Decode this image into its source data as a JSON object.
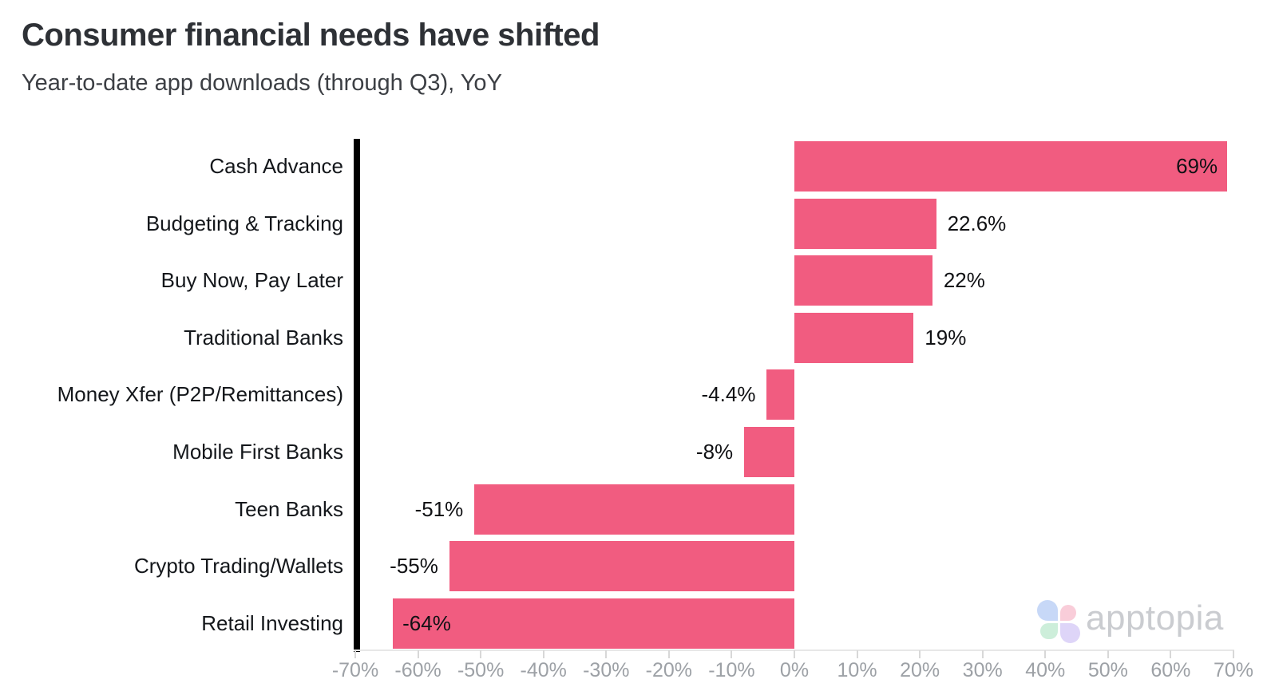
{
  "header": {
    "title": "Consumer financial needs have shifted",
    "subtitle": "Year-to-date app downloads (through Q3), YoY"
  },
  "chart_data": {
    "type": "bar",
    "orientation": "horizontal",
    "title": "Consumer financial needs have shifted",
    "subtitle": "Year-to-date app downloads (through Q3), YoY",
    "categories": [
      "Cash Advance",
      "Budgeting & Tracking",
      "Buy Now, Pay Later",
      "Traditional Banks",
      "Money Xfer (P2P/Remittances)",
      "Mobile First Banks",
      "Teen Banks",
      "Crypto Trading/Wallets",
      "Retail Investing"
    ],
    "values": [
      69,
      22.6,
      22,
      19,
      -4.4,
      -8,
      -51,
      -55,
      -64
    ],
    "value_labels": [
      "69%",
      "22.6%",
      "22%",
      "19%",
      "-4.4%",
      "-8%",
      "-51%",
      "-55%",
      "-64%"
    ],
    "label_inside": [
      true,
      false,
      false,
      false,
      false,
      false,
      false,
      false,
      true
    ],
    "xlim": [
      -70,
      70
    ],
    "x_tick_values": [
      -70,
      -60,
      -50,
      -40,
      -30,
      -20,
      -10,
      0,
      10,
      20,
      30,
      40,
      50,
      60,
      70
    ],
    "x_tick_labels": [
      "-70%",
      "-60%",
      "-50%",
      "-40%",
      "-30%",
      "-20%",
      "-10%",
      "0%",
      "10%",
      "20%",
      "30%",
      "40%",
      "50%",
      "60%",
      "70%"
    ],
    "bar_color": "#f15c80",
    "grid": false,
    "legend": "none"
  },
  "watermark": {
    "brand": "apptopia",
    "text_color": "#caccd0",
    "leaf_colors": {
      "blue": "#c7d8f7",
      "pink": "#f9cdd9",
      "green": "#cdeeda",
      "purple": "#ded5f8"
    }
  }
}
